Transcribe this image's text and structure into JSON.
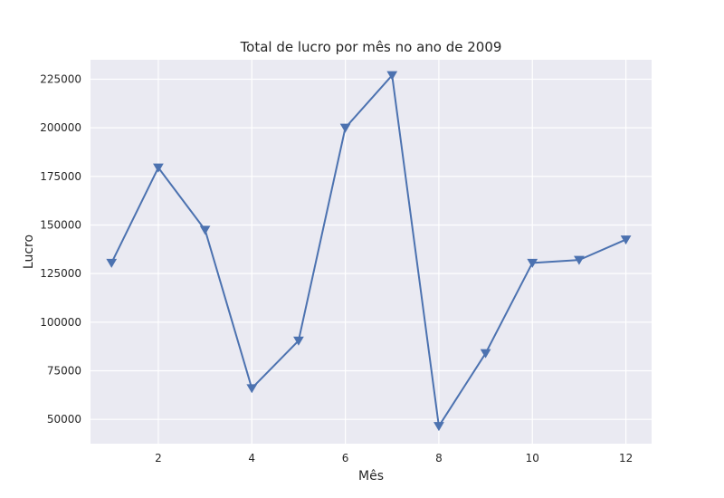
{
  "chart_data": {
    "type": "line",
    "title": "Total de lucro por mês no ano de 2009",
    "xlabel": "Mês",
    "ylabel": "Lucro",
    "x": [
      1,
      2,
      3,
      4,
      5,
      6,
      7,
      8,
      9,
      10,
      11,
      12
    ],
    "series": [
      {
        "values": [
          130500,
          179500,
          147500,
          66000,
          90500,
          200000,
          227000,
          46500,
          84000,
          130500,
          132000,
          142500
        ],
        "color": "#4c72b0",
        "marker": "triangle-down"
      }
    ],
    "xlim": [
      0.55,
      12.55
    ],
    "ylim": [
      37500,
      235000
    ],
    "xticks": [
      2,
      4,
      6,
      8,
      10,
      12
    ],
    "yticks": [
      50000,
      75000,
      100000,
      125000,
      150000,
      175000,
      200000,
      225000
    ],
    "grid": true,
    "background": "#eaeaf2"
  }
}
